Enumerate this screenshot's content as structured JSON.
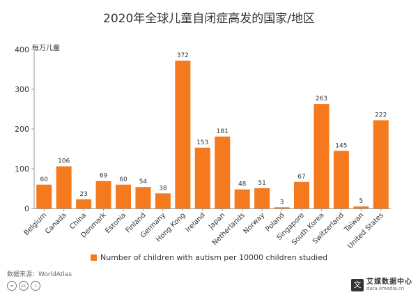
{
  "chart_data": {
    "type": "bar",
    "title": "2020年全球儿童自闭症高发的国家/地区",
    "ylabel": "每万儿童",
    "xlabel": "",
    "ylim": [
      0,
      400
    ],
    "yticks": [
      0,
      100,
      200,
      300,
      400
    ],
    "grid": false,
    "legend_position": "bottom-center",
    "categories": [
      "Belgium",
      "Canada",
      "China",
      "Denmark",
      "Estonia",
      "Finland",
      "Germany",
      "Hong Kong",
      "Ireland",
      "Japan",
      "Netherlands",
      "Norway",
      "Poland",
      "Singapore",
      "South Korea",
      "Switzerland",
      "Taiwan",
      "United States"
    ],
    "series": [
      {
        "name": "Number of children with autism per 10000 children studied",
        "values": [
          60,
          106,
          23,
          69,
          60,
          54,
          38,
          372,
          153,
          181,
          48,
          51,
          3,
          67,
          263,
          145,
          5,
          222
        ],
        "color": "#f57a1d"
      }
    ]
  },
  "source": "数据来源：WorldAtlas",
  "cc_icons": [
    {
      "icon": "equals-icon",
      "glyph": "="
    },
    {
      "icon": "cc-icon",
      "glyph": "cc"
    },
    {
      "icon": "info-icon",
      "glyph": "i"
    }
  ],
  "brand": {
    "logo_glyph": "文",
    "name": "艾媒数据中心",
    "url": "data.iimedia.cn"
  },
  "colors": {
    "bar": "#f57a1d",
    "axis": "#999999",
    "text": "#333333"
  }
}
